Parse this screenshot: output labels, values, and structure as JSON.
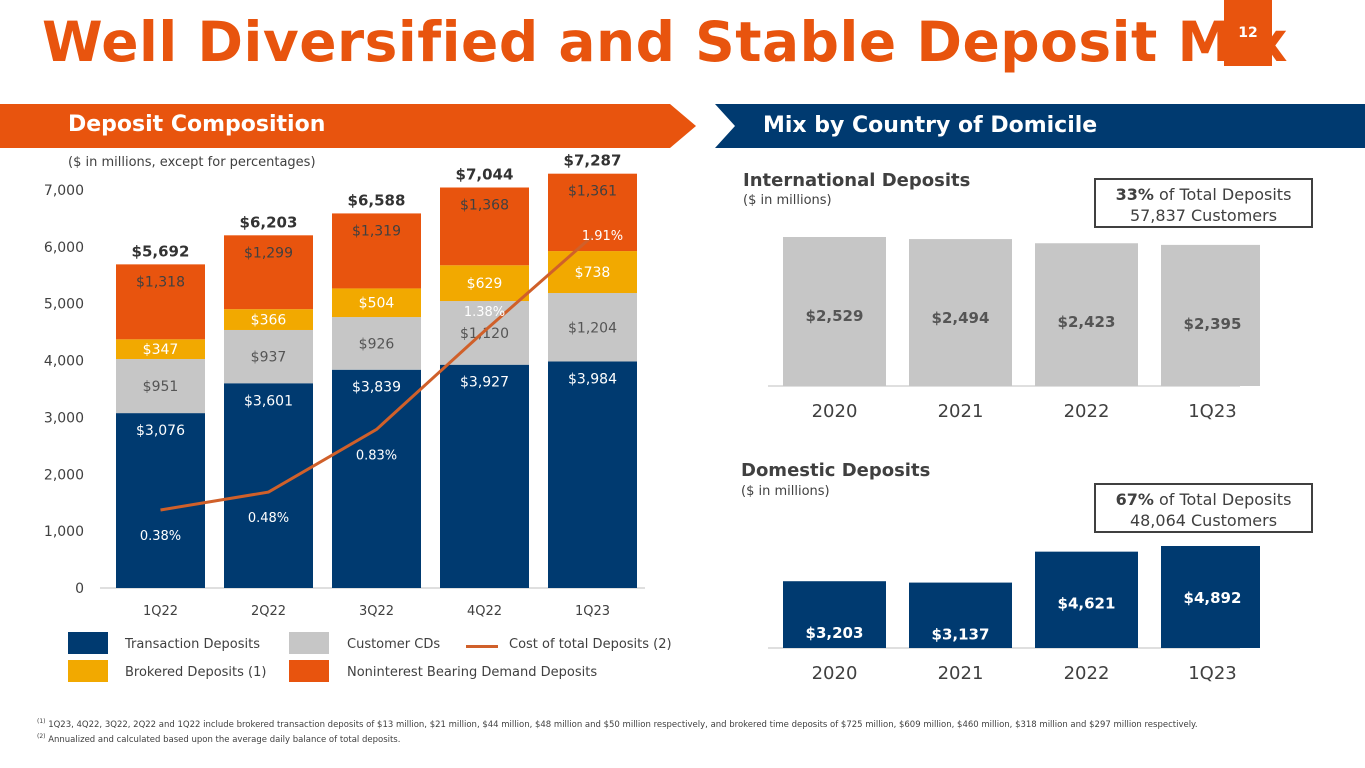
{
  "title": "Well Diversified and Stable Deposit Mix",
  "page_number": "12",
  "left_banner": "Deposit Composition",
  "right_banner": "Mix by Country of Domicile",
  "unit_note": "($ in millions, except for percentages)",
  "colors": {
    "orange": "#e8540e",
    "navy": "#003a70",
    "gray": "#c6c6c6",
    "gold": "#f2a900",
    "line": "#d0602a"
  },
  "legend": {
    "transaction": "Transaction Deposits",
    "cds": "Customer CDs",
    "cost": "Cost of total Deposits",
    "cost_note": "(2)",
    "brokered": "Brokered Deposits",
    "brokered_note": "(1)",
    "nonint": "Noninterest Bearing Demand Deposits"
  },
  "international": {
    "title": "International Deposits",
    "unit": "($ in millions)",
    "box_pct": "33%",
    "box_text": "of Total Deposits",
    "box_customers": "57,837 Customers"
  },
  "domestic": {
    "title": "Domestic Deposits",
    "unit": "($ in millions)",
    "box_pct": "67%",
    "box_text": "of Total Deposits",
    "box_customers": "48,064 Customers"
  },
  "footnotes": {
    "n1_mark": "(1)",
    "n1": "1Q23, 4Q22, 3Q22, 2Q22 and 1Q22 include brokered transaction deposits of $13 million, $21 million, $44 million, $48 million and $50 million respectively, and brokered time deposits of $725 million,  $609 million,  $460 million, $318 million and $297 million respectively.",
    "n2_mark": "(2)",
    "n2": "Annualized and calculated based upon the average daily balance of total deposits."
  },
  "chart_data": [
    {
      "type": "bar",
      "stacked": true,
      "title": "Deposit Composition",
      "categories": [
        "1Q22",
        "2Q22",
        "3Q22",
        "4Q22",
        "1Q23"
      ],
      "ylim": [
        0,
        7000
      ],
      "yticks": [
        0,
        1000,
        2000,
        3000,
        4000,
        5000,
        6000,
        7000
      ],
      "ytick_labels": [
        "0",
        "1,000",
        "2,000",
        "3,000",
        "4,000",
        "5,000",
        "6,000",
        "7,000"
      ],
      "series": [
        {
          "name": "Transaction Deposits",
          "values": [
            3076,
            3601,
            3839,
            3927,
            3984
          ],
          "labels": [
            "$3,076",
            "$3,601",
            "$3,839",
            "$3,927",
            "$3,984"
          ]
        },
        {
          "name": "Customer CDs",
          "values": [
            951,
            937,
            926,
            1120,
            1204
          ],
          "labels": [
            "$951",
            "$937",
            "$926",
            "$1,120",
            "$1,204"
          ]
        },
        {
          "name": "Brokered Deposits",
          "values": [
            347,
            366,
            504,
            629,
            738
          ],
          "labels": [
            "$347",
            "$366",
            "$504",
            "$629",
            "$738"
          ]
        },
        {
          "name": "Noninterest Bearing Demand Deposits",
          "values": [
            1318,
            1299,
            1319,
            1368,
            1361
          ],
          "labels": [
            "$1,318",
            "$1,299",
            "$1,319",
            "$1,368",
            "$1,361"
          ]
        }
      ],
      "totals": [
        5692,
        6203,
        6588,
        7044,
        7287
      ],
      "total_labels": [
        "$5,692",
        "$6,203",
        "$6,588",
        "$7,044",
        "$7,287"
      ],
      "line": {
        "name": "Cost of total Deposits",
        "values_pct": [
          0.38,
          0.48,
          0.83,
          1.38,
          1.91
        ],
        "labels": [
          "0.38%",
          "0.48%",
          "0.83%",
          "1.38%",
          "1.91%"
        ],
        "scale_max_pct": 2.0
      }
    },
    {
      "type": "bar",
      "title": "International Deposits",
      "categories": [
        "2020",
        "2021",
        "2022",
        "1Q23"
      ],
      "values": [
        2529,
        2494,
        2423,
        2395
      ],
      "labels": [
        "$2,529",
        "$2,494",
        "$2,423",
        "$2,395"
      ]
    },
    {
      "type": "bar",
      "title": "Domestic Deposits",
      "categories": [
        "2020",
        "2021",
        "2022",
        "1Q23"
      ],
      "values": [
        3203,
        3137,
        4621,
        4892
      ],
      "labels": [
        "$3,203",
        "$3,137",
        "$4,621",
        "$4,892"
      ]
    }
  ]
}
